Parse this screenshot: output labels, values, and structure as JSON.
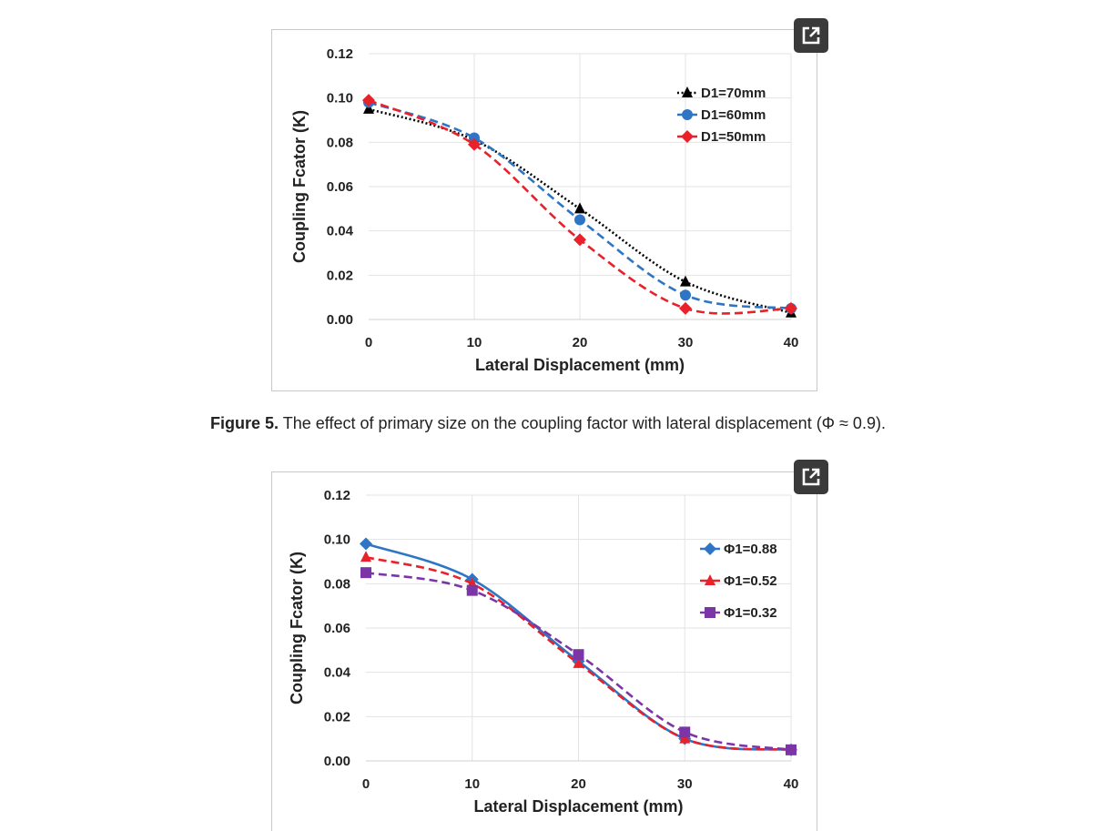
{
  "figure5": {
    "caption_label": "Figure 5.",
    "caption_text": "The effect of primary size on the coupling factor with lateral displacement (Φ ≈ 0.9)."
  },
  "chart_data": [
    {
      "type": "line",
      "title": "",
      "xlabel": "Lateral Displacement (mm)",
      "ylabel": "Coupling Fcator (K)",
      "x": [
        0,
        10,
        20,
        30,
        40
      ],
      "xticks": [
        "0",
        "10",
        "20",
        "30",
        "40"
      ],
      "yticks": [
        "0.00",
        "0.02",
        "0.04",
        "0.06",
        "0.08",
        "0.10",
        "0.12"
      ],
      "xlim": [
        0,
        40
      ],
      "ylim": [
        0,
        0.12
      ],
      "grid": true,
      "legend_position": "top-right",
      "series": [
        {
          "name": "D1=70mm",
          "values": [
            0.095,
            0.081,
            0.05,
            0.017,
            0.003
          ],
          "color": "#000000",
          "dash": "dotted",
          "marker": "triangle"
        },
        {
          "name": "D1=60mm",
          "values": [
            0.098,
            0.082,
            0.045,
            0.011,
            0.005
          ],
          "color": "#2e75c6",
          "dash": "dashed",
          "marker": "circle"
        },
        {
          "name": "D1=50mm",
          "values": [
            0.099,
            0.079,
            0.036,
            0.005,
            0.005
          ],
          "color": "#e8212b",
          "dash": "dashed",
          "marker": "diamond"
        }
      ]
    },
    {
      "type": "line",
      "title": "",
      "xlabel": "Lateral Displacement (mm)",
      "ylabel": "Coupling Fcator (K)",
      "x": [
        0,
        10,
        20,
        30,
        40
      ],
      "xticks": [
        "0",
        "10",
        "20",
        "30",
        "40"
      ],
      "yticks": [
        "0.00",
        "0.02",
        "0.04",
        "0.06",
        "0.08",
        "0.10",
        "0.12"
      ],
      "xlim": [
        0,
        40
      ],
      "ylim": [
        0,
        0.12
      ],
      "grid": true,
      "legend_position": "right",
      "series": [
        {
          "name": "Φ1=0.88",
          "values": [
            0.098,
            0.082,
            0.045,
            0.01,
            0.005
          ],
          "color": "#2e75c6",
          "dash": "solid",
          "marker": "diamond"
        },
        {
          "name": "Φ1=0.52",
          "values": [
            0.092,
            0.08,
            0.044,
            0.01,
            0.005
          ],
          "color": "#e8212b",
          "dash": "dashed",
          "marker": "triangle"
        },
        {
          "name": "Φ1=0.32",
          "values": [
            0.085,
            0.077,
            0.048,
            0.013,
            0.005
          ],
          "color": "#7b35a6",
          "dash": "dashed",
          "marker": "square"
        }
      ]
    }
  ]
}
